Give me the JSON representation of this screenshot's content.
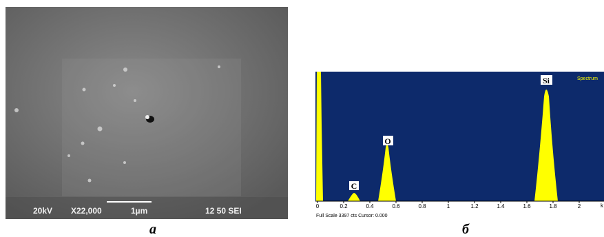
{
  "figure": {
    "panels": [
      {
        "caption": "а",
        "overlay": {
          "voltage": "20kV",
          "magnification": "X22,000",
          "scale": "1µm",
          "info": "12 50 SEI"
        }
      },
      {
        "caption": "б",
        "legend": "Spectrum",
        "peaks": [
          "C",
          "O",
          "Si"
        ],
        "xticks": [
          0,
          0.2,
          0.4,
          0.6,
          0.8,
          1,
          1.2,
          1.4,
          1.6,
          1.8,
          2
        ],
        "xunit": "k",
        "footer": "Full Scale 3397 cts Cursor: 0.000"
      }
    ]
  }
}
